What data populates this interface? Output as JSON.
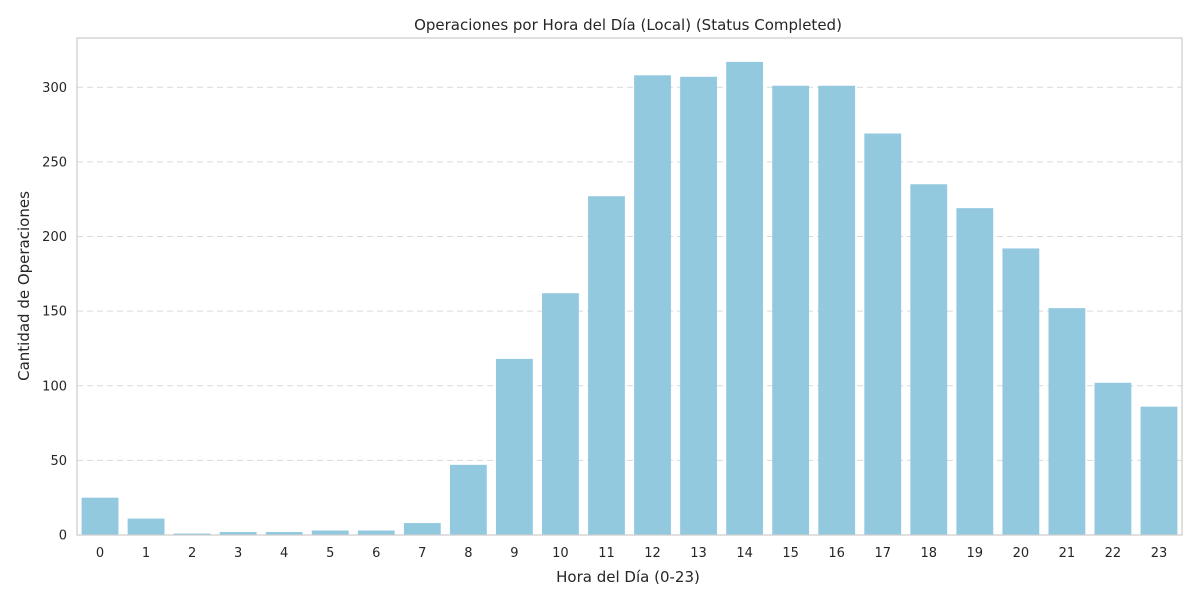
{
  "chart_data": {
    "type": "bar",
    "title": "Operaciones por Hora del Día (Local) (Status Completed)",
    "xlabel": "Hora del Día (0-23)",
    "ylabel": "Cantidad de Operaciones",
    "categories": [
      "0",
      "1",
      "2",
      "3",
      "4",
      "5",
      "6",
      "7",
      "8",
      "9",
      "10",
      "11",
      "12",
      "13",
      "14",
      "15",
      "16",
      "17",
      "18",
      "19",
      "20",
      "21",
      "22",
      "23"
    ],
    "values": [
      25,
      11,
      1,
      2,
      2,
      3,
      3,
      8,
      47,
      118,
      162,
      227,
      308,
      307,
      317,
      301,
      301,
      269,
      235,
      219,
      192,
      152,
      102,
      86
    ],
    "ylim": [
      0,
      333
    ],
    "yticks": [
      0,
      50,
      100,
      150,
      200,
      250,
      300
    ],
    "ytick_labels": [
      "0",
      "50",
      "100",
      "150",
      "200",
      "250",
      "300"
    ],
    "grid": "y-dashed",
    "bar_color": "#92c9df",
    "grid_color": "#d9d9d9",
    "frame_color": "#cccccc"
  }
}
